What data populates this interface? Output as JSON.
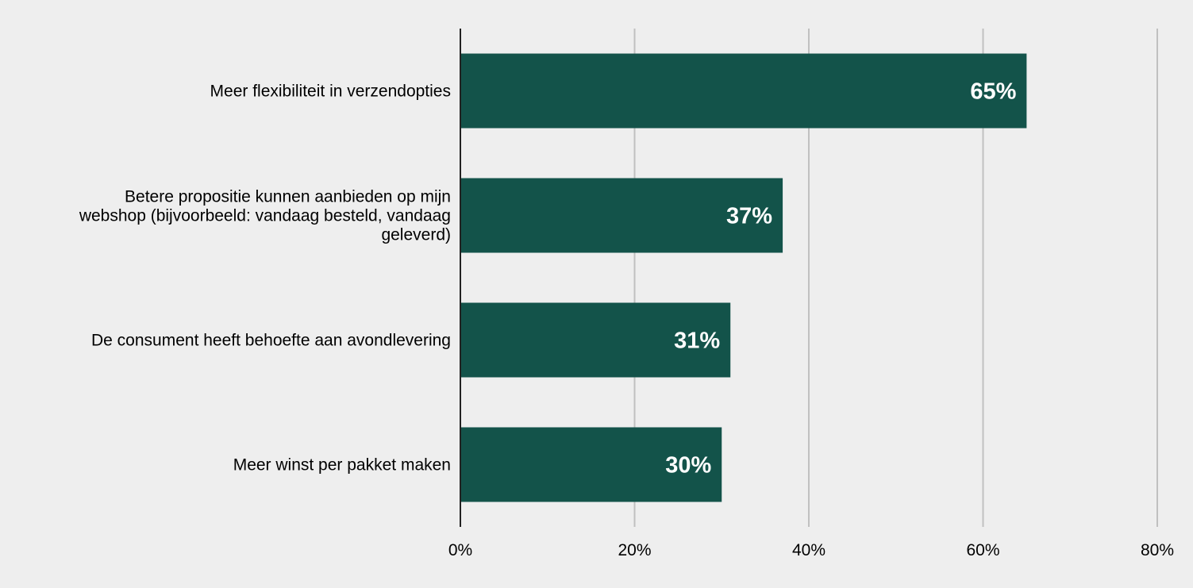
{
  "chart_data": {
    "type": "bar",
    "orientation": "horizontal",
    "categories": [
      "Meer flexibiliteit in verzendopties",
      "Betere propositie kunnen aanbieden op mijn webshop (bijvoorbeeld: vandaag besteld, vandaag geleverd)",
      "De consument heeft behoefte aan avondlevering",
      "Meer winst per pakket maken"
    ],
    "category_lines": [
      [
        "Meer flexibiliteit in verzendopties"
      ],
      [
        "Betere propositie kunnen aanbieden op mijn",
        "webshop (bijvoorbeeld: vandaag besteld, vandaag",
        "geleverd)"
      ],
      [
        "De consument heeft behoefte aan avondlevering"
      ],
      [
        "Meer winst per pakket maken"
      ]
    ],
    "values": [
      65,
      37,
      31,
      30
    ],
    "data_labels": [
      "65%",
      "37%",
      "31%",
      "30%"
    ],
    "xlim": [
      0,
      80
    ],
    "x_ticks": [
      0,
      20,
      40,
      60,
      80
    ],
    "x_tick_labels": [
      "0%",
      "20%",
      "40%",
      "60%",
      "80%"
    ],
    "title": "",
    "xlabel": "",
    "ylabel": "",
    "grid": true,
    "colors": {
      "bar": "#13534a",
      "grid": "#c0c0c0",
      "axis": "#222222",
      "background": "#eeeeee",
      "data_label": "#ffffff"
    }
  }
}
